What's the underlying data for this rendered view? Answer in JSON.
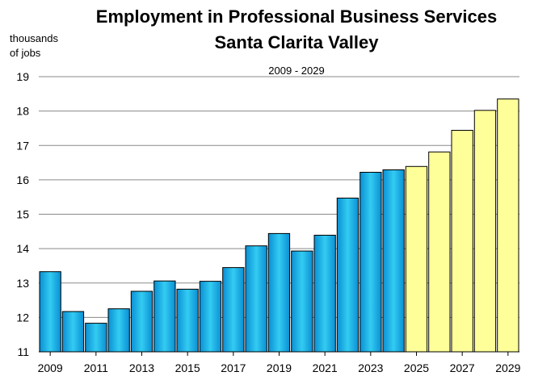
{
  "chart_data": {
    "type": "bar",
    "title": "Employment in Professional Business Services",
    "subtitle": "Santa Clarita Valley",
    "period_label": "2009 - 2029",
    "ylabel_line1": "thousands",
    "ylabel_line2": "of jobs",
    "xlabel": "",
    "ylim": [
      11,
      19
    ],
    "yticks": [
      11,
      12,
      13,
      14,
      15,
      16,
      17,
      18,
      19
    ],
    "grid": true,
    "categories": [
      2009,
      2010,
      2011,
      2012,
      2013,
      2014,
      2015,
      2016,
      2017,
      2018,
      2019,
      2020,
      2021,
      2022,
      2023,
      2024,
      2025,
      2026,
      2027,
      2028,
      2029
    ],
    "x_tick_labels": [
      "2009",
      "2011",
      "2013",
      "2015",
      "2017",
      "2019",
      "2021",
      "2023",
      "2025",
      "2027",
      "2029"
    ],
    "values": [
      13.33,
      12.17,
      11.83,
      12.25,
      12.76,
      13.06,
      12.82,
      13.05,
      13.45,
      14.08,
      14.44,
      13.93,
      14.39,
      15.47,
      16.22,
      16.29,
      16.39,
      16.81,
      17.44,
      18.02,
      18.35
    ],
    "forecast_start_index": 16,
    "colors": {
      "historical_dark": "#0a8fd4",
      "historical_light": "#33ccf2",
      "forecast_fill": "#ffff99",
      "bar_outline": "#000000"
    }
  }
}
